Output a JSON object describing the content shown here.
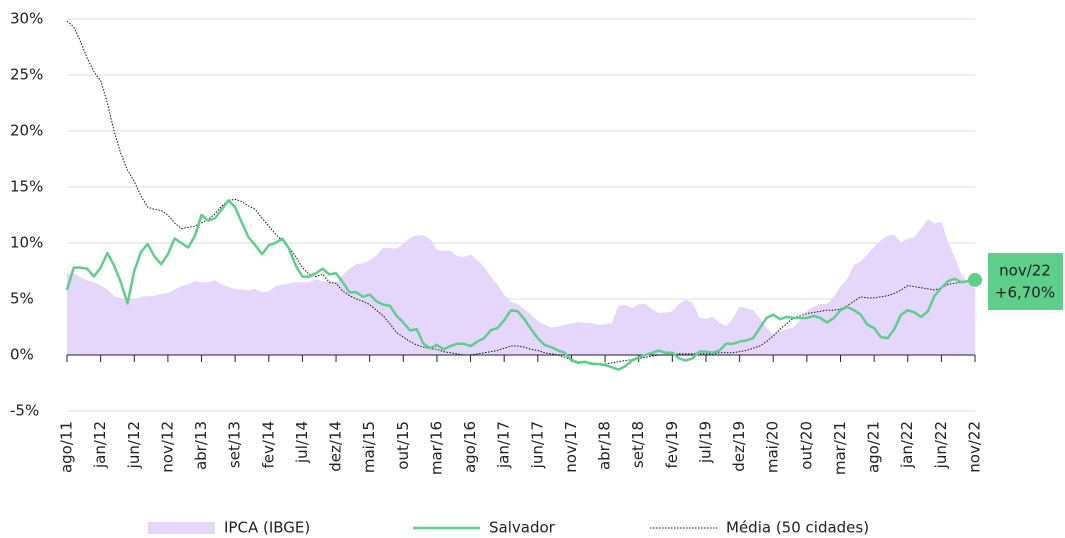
{
  "chart_data": {
    "type": "line",
    "categories": [
      "ago/11",
      null,
      null,
      null,
      null,
      "jan/12",
      null,
      null,
      null,
      null,
      "jun/12",
      null,
      null,
      null,
      null,
      "nov/12",
      null,
      null,
      null,
      null,
      "abr/13",
      null,
      null,
      null,
      null,
      "set/13",
      null,
      null,
      null,
      null,
      "fev/14",
      null,
      null,
      null,
      null,
      "jul/14",
      null,
      null,
      null,
      null,
      "dez/14",
      null,
      null,
      null,
      null,
      "mai/15",
      null,
      null,
      null,
      null,
      "out/15",
      null,
      null,
      null,
      null,
      "mar/16",
      null,
      null,
      null,
      null,
      "ago/16",
      null,
      null,
      null,
      null,
      "jan/17",
      null,
      null,
      null,
      null,
      "jun/17",
      null,
      null,
      null,
      null,
      "nov/17",
      null,
      null,
      null,
      null,
      "abr/18",
      null,
      null,
      null,
      null,
      "set/18",
      null,
      null,
      null,
      null,
      "fev/19",
      null,
      null,
      null,
      null,
      "jul/19",
      null,
      null,
      null,
      null,
      "dez/19",
      null,
      null,
      null,
      null,
      "mai/20",
      null,
      null,
      null,
      null,
      "out/20",
      null,
      null,
      null,
      null,
      "mar/21",
      null,
      null,
      null,
      null,
      "ago/21",
      null,
      null,
      null,
      null,
      "jan/22",
      null,
      null,
      null,
      null,
      "jun/22",
      null,
      null,
      null,
      null,
      "nov/22"
    ],
    "series": [
      {
        "name": "IPCA (IBGE)",
        "color": "#e5d6fb",
        "style": "area",
        "values": [
          7.23,
          7.31,
          6.97,
          6.64,
          6.5,
          6.22,
          5.85,
          5.24,
          5.1,
          4.99,
          4.92,
          5.2,
          5.24,
          5.28,
          5.45,
          5.53,
          5.84,
          6.15,
          6.31,
          6.59,
          6.49,
          6.5,
          6.7,
          6.27,
          6.09,
          5.86,
          5.84,
          5.77,
          5.91,
          5.59,
          5.68,
          6.15,
          6.28,
          6.37,
          6.52,
          6.5,
          6.51,
          6.75,
          6.59,
          6.56,
          6.41,
          7.14,
          7.7,
          8.13,
          8.17,
          8.47,
          8.89,
          9.56,
          9.53,
          9.49,
          9.93,
          10.48,
          10.67,
          10.71,
          10.36,
          9.39,
          9.28,
          9.32,
          8.84,
          8.74,
          8.97,
          8.48,
          7.87,
          6.99,
          6.29,
          5.35,
          4.76,
          4.57,
          4.08,
          3.6,
          3.0,
          2.71,
          2.46,
          2.54,
          2.7,
          2.8,
          2.95,
          2.86,
          2.84,
          2.68,
          2.76,
          2.86,
          4.39,
          4.48,
          4.19,
          4.53,
          4.56,
          4.05,
          3.75,
          3.78,
          3.89,
          4.58,
          4.94,
          4.66,
          3.37,
          3.22,
          3.43,
          2.89,
          2.54,
          3.27,
          4.31,
          4.19,
          4.01,
          3.3,
          2.4,
          1.88,
          2.13,
          2.31,
          2.44,
          3.14,
          3.92,
          4.31,
          4.52,
          4.56,
          5.2,
          6.1,
          6.76,
          8.06,
          8.35,
          8.99,
          9.68,
          10.25,
          10.67,
          10.74,
          10.06,
          10.38,
          10.54,
          11.3,
          12.13,
          11.73,
          11.89,
          10.07,
          8.73,
          7.17,
          6.47,
          5.9
        ]
      },
      {
        "name": "Salvador",
        "color": "#5ecf8a",
        "style": "solid",
        "values": [
          5.8,
          7.8,
          7.8,
          7.7,
          7.0,
          7.8,
          9.1,
          8.0,
          6.5,
          4.6,
          7.5,
          9.2,
          9.9,
          8.8,
          8.1,
          9.0,
          10.4,
          10.0,
          9.6,
          10.6,
          12.5,
          12.0,
          12.2,
          13.0,
          13.8,
          13.2,
          11.8,
          10.5,
          9.8,
          9.0,
          9.8,
          10.0,
          10.4,
          9.5,
          8.0,
          7.0,
          7.0,
          7.3,
          7.7,
          7.2,
          7.3,
          6.5,
          5.6,
          5.6,
          5.2,
          5.4,
          4.8,
          4.5,
          4.4,
          3.5,
          2.9,
          2.2,
          2.3,
          1.0,
          0.6,
          0.9,
          0.5,
          0.8,
          1.0,
          1.0,
          0.8,
          1.2,
          1.5,
          2.2,
          2.4,
          3.1,
          4.0,
          3.9,
          3.2,
          2.3,
          1.5,
          0.9,
          0.7,
          0.4,
          0.2,
          -0.5,
          -0.7,
          -0.6,
          -0.8,
          -0.8,
          -0.9,
          -1.1,
          -1.3,
          -1.0,
          -0.5,
          -0.2,
          0.0,
          0.2,
          0.4,
          0.2,
          0.2,
          -0.3,
          -0.5,
          -0.3,
          0.3,
          0.3,
          0.2,
          0.4,
          1.0,
          1.0,
          1.2,
          1.3,
          1.5,
          2.4,
          3.3,
          3.6,
          3.2,
          3.4,
          3.3,
          3.3,
          3.3,
          3.5,
          3.3,
          2.9,
          3.3,
          4.0,
          4.3,
          4.0,
          3.6,
          2.7,
          2.4,
          1.6,
          1.5,
          2.3,
          3.6,
          4.0,
          3.8,
          3.4,
          3.9,
          5.3,
          6.0,
          6.6,
          6.8,
          6.5,
          6.6,
          6.7
        ]
      },
      {
        "name": "Média (50 cidades)",
        "color": "#111111",
        "style": "dotted",
        "values": [
          29.8,
          29.3,
          28.0,
          26.5,
          25.3,
          24.5,
          22.5,
          20.0,
          18.0,
          16.5,
          15.5,
          14.2,
          13.2,
          13.0,
          12.9,
          12.5,
          11.8,
          11.3,
          11.4,
          11.5,
          11.8,
          12.1,
          12.6,
          13.3,
          13.8,
          13.9,
          13.7,
          13.3,
          13.0,
          12.2,
          11.5,
          10.8,
          10.2,
          9.6,
          8.8,
          7.8,
          7.2,
          7.0,
          7.2,
          6.5,
          6.4,
          5.7,
          5.3,
          5.0,
          4.8,
          4.5,
          4.0,
          3.5,
          2.8,
          2.0,
          1.6,
          1.2,
          0.9,
          0.7,
          0.6,
          0.5,
          0.3,
          0.2,
          0.1,
          0.0,
          0.0,
          0.1,
          0.2,
          0.3,
          0.4,
          0.6,
          0.8,
          0.8,
          0.7,
          0.5,
          0.4,
          0.2,
          0.1,
          0.0,
          -0.2,
          -0.4,
          -0.6,
          -0.6,
          -0.7,
          -0.8,
          -0.8,
          -0.7,
          -0.6,
          -0.5,
          -0.4,
          -0.3,
          -0.2,
          -0.1,
          0.0,
          0.0,
          0.0,
          0.1,
          0.1,
          0.1,
          0.1,
          0.1,
          0.1,
          0.2,
          0.2,
          0.2,
          0.3,
          0.4,
          0.6,
          0.8,
          1.2,
          1.7,
          2.3,
          2.8,
          3.3,
          3.5,
          3.7,
          3.8,
          3.9,
          4.0,
          4.0,
          4.1,
          4.4,
          4.8,
          5.2,
          5.1,
          5.1,
          5.2,
          5.3,
          5.5,
          5.8,
          6.2,
          6.1,
          6.0,
          5.9,
          5.8,
          6.0,
          6.3,
          6.4,
          6.5,
          6.6,
          6.6
        ]
      }
    ],
    "ylim": [
      -5,
      30
    ],
    "yticks": [
      {
        "value": -5,
        "label": "-5%"
      },
      {
        "value": 0,
        "label": "0%"
      },
      {
        "value": 5,
        "label": "5%"
      },
      {
        "value": 10,
        "label": "10%"
      },
      {
        "value": 15,
        "label": "15%"
      },
      {
        "value": 20,
        "label": "20%"
      },
      {
        "value": 25,
        "label": "25%"
      },
      {
        "value": 30,
        "label": "30%"
      }
    ],
    "grid": true,
    "legend": "bottom",
    "annotation": {
      "label": "nov/22",
      "text": "+6,70%",
      "series": 1,
      "color": "#5ecf8a"
    }
  }
}
